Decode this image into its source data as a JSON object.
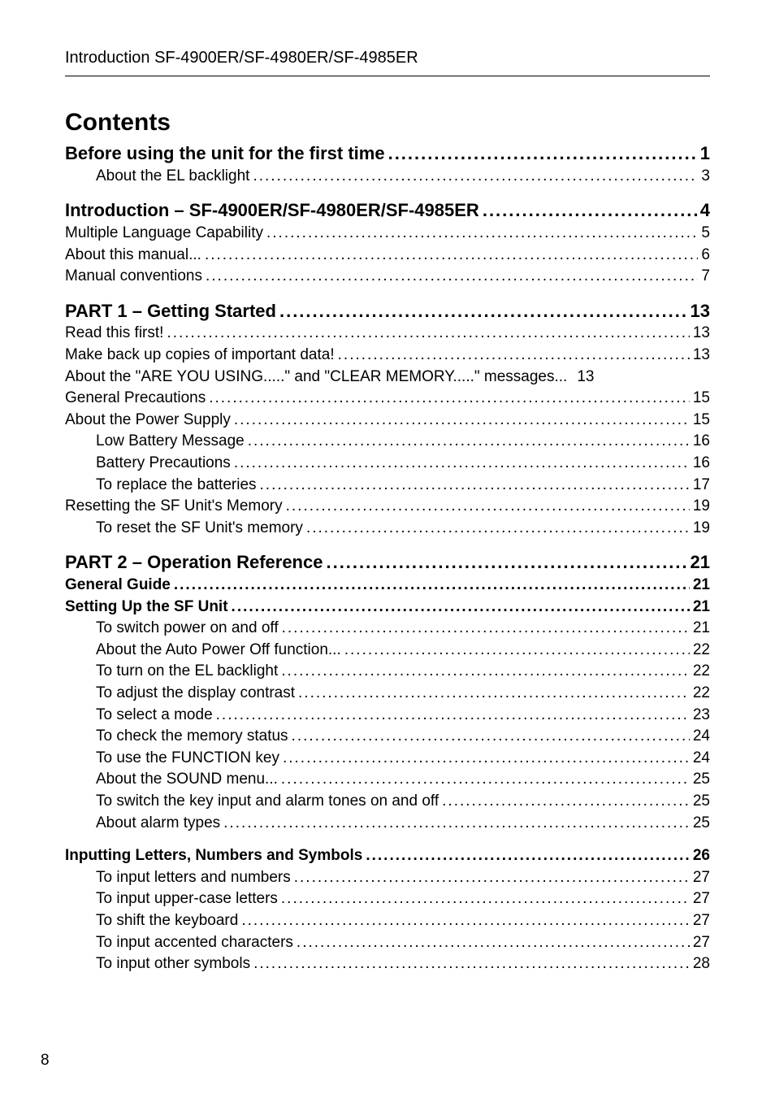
{
  "header": "Introduction   SF-4900ER/SF-4980ER/SF-4985ER",
  "contents_heading": "Contents",
  "footer_page_number": "8",
  "sections": [
    {
      "entries": [
        {
          "level": 0,
          "indent": 0,
          "label": "Before using the unit for the first time",
          "page": "1",
          "leader": true
        },
        {
          "level": 3,
          "indent": 3,
          "label": "About the EL backlight",
          "page": "3",
          "leader": true
        }
      ]
    },
    {
      "entries": [
        {
          "level": 0,
          "indent": 0,
          "label": "Introduction – SF-4900ER/SF-4980ER/SF-4985ER",
          "page": "4",
          "leader": true
        },
        {
          "level": 2,
          "indent": 0,
          "label": "Multiple Language Capability",
          "page": "5",
          "leader": true
        },
        {
          "level": 2,
          "indent": 0,
          "label": "About this manual...",
          "page": "6",
          "leader": true
        },
        {
          "level": 2,
          "indent": 0,
          "label": "Manual conventions",
          "page": "7",
          "leader": true
        }
      ]
    },
    {
      "entries": [
        {
          "level": 0,
          "indent": 0,
          "label": "PART 1 – Getting Started",
          "page": "13",
          "leader": true
        },
        {
          "level": 2,
          "indent": 0,
          "label": "Read this first!",
          "page": "13",
          "leader": true
        },
        {
          "level": 2,
          "indent": 0,
          "label": "Make back up copies of important data!",
          "page": "13",
          "leader": true
        },
        {
          "level": 2,
          "indent": 0,
          "label": "About the \"ARE YOU USING.....\" and \"CLEAR MEMORY.....\" messages...",
          "page": "13",
          "leader": false
        },
        {
          "level": 2,
          "indent": 0,
          "label": "General Precautions",
          "page": "15",
          "leader": true
        },
        {
          "level": 2,
          "indent": 0,
          "label": "About the Power Supply",
          "page": "15",
          "leader": true
        },
        {
          "level": 3,
          "indent": 3,
          "label": "Low Battery Message",
          "page": "16",
          "leader": true
        },
        {
          "level": 3,
          "indent": 3,
          "label": "Battery Precautions",
          "page": "16",
          "leader": true
        },
        {
          "level": 3,
          "indent": 3,
          "label": "To replace the batteries",
          "page": "17",
          "leader": true
        },
        {
          "level": 2,
          "indent": 0,
          "label": "Resetting the SF Unit's Memory",
          "page": "19",
          "leader": true
        },
        {
          "level": 3,
          "indent": 3,
          "label": "To reset the SF Unit's memory",
          "page": "19",
          "leader": true
        }
      ]
    },
    {
      "entries": [
        {
          "level": 0,
          "indent": 0,
          "label": "PART 2 – Operation Reference",
          "page": "21",
          "leader": true
        },
        {
          "level": 1,
          "indent": 0,
          "label": "General Guide",
          "page": "21",
          "leader": true
        },
        {
          "level": 1,
          "indent": 0,
          "label": "Setting Up the SF Unit",
          "page": "21",
          "leader": true
        },
        {
          "level": 3,
          "indent": 3,
          "label": "To switch power on and off",
          "page": "21",
          "leader": true
        },
        {
          "level": 3,
          "indent": 3,
          "label": "About the Auto Power Off function...",
          "page": "22",
          "leader": true
        },
        {
          "level": 3,
          "indent": 3,
          "label": "To turn on the EL backlight",
          "page": "22",
          "leader": true
        },
        {
          "level": 3,
          "indent": 3,
          "label": "To adjust the display contrast",
          "page": "22",
          "leader": true
        },
        {
          "level": 3,
          "indent": 3,
          "label": "To select a mode",
          "page": "23",
          "leader": true
        },
        {
          "level": 3,
          "indent": 3,
          "label": "To check the memory status",
          "page": "24",
          "leader": true
        },
        {
          "level": 3,
          "indent": 3,
          "label": "To use the FUNCTION key",
          "page": "24",
          "leader": true
        },
        {
          "level": 3,
          "indent": 3,
          "label": "About the SOUND menu...",
          "page": "25",
          "leader": true
        },
        {
          "level": 3,
          "indent": 3,
          "label": "To switch the key input and alarm tones on and off",
          "page": "25",
          "leader": true
        },
        {
          "level": 3,
          "indent": 3,
          "label": "About alarm types",
          "page": "25",
          "leader": true
        }
      ]
    },
    {
      "entries": [
        {
          "level": 1,
          "indent": 0,
          "label": "Inputting Letters, Numbers and Symbols",
          "page": "26",
          "leader": true
        },
        {
          "level": 3,
          "indent": 3,
          "label": "To input letters and numbers",
          "page": "27",
          "leader": true
        },
        {
          "level": 3,
          "indent": 3,
          "label": "To input upper-case letters",
          "page": "27",
          "leader": true
        },
        {
          "level": 3,
          "indent": 3,
          "label": "To shift the keyboard",
          "page": "27",
          "leader": true
        },
        {
          "level": 3,
          "indent": 3,
          "label": "To input accented characters",
          "page": "27",
          "leader": true
        },
        {
          "level": 3,
          "indent": 3,
          "label": "To input other symbols",
          "page": "28",
          "leader": true
        }
      ]
    }
  ]
}
